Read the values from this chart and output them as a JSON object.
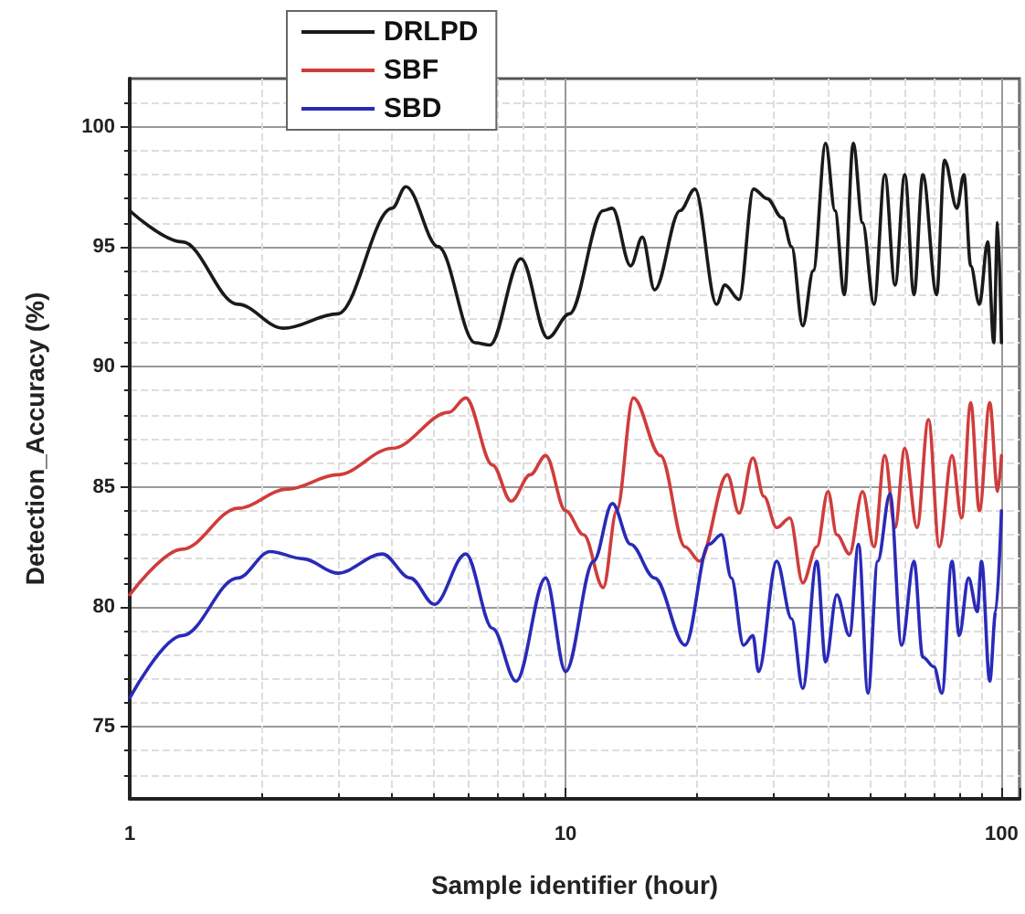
{
  "chart_data": {
    "type": "line",
    "xlabel": "Sample identifier (hour)",
    "ylabel": "Detection_Accuracy (%)",
    "log": "x",
    "xlim": [
      1,
      110
    ],
    "xticks": [
      1,
      10,
      100
    ],
    "ylim": [
      72,
      102
    ],
    "yticks": [
      75,
      80,
      85,
      90,
      95,
      100
    ],
    "grid": true,
    "legend": "top",
    "marker": "none",
    "line_style": "solid",
    "series": [
      {
        "name": "DRLPD",
        "color": "#1a1a1a",
        "x": [
          1,
          1.32,
          1.77,
          2.25,
          3,
          4,
          4.3,
          5.1,
          6.2,
          6.7,
          7.9,
          9.1,
          10.2,
          12.2,
          12.8,
          14.1,
          15,
          16,
          18.3,
          19.8,
          22.2,
          23.2,
          25,
          27,
          29,
          31.4,
          33,
          35,
          37,
          39.5,
          41.5,
          43.6,
          45.7,
          48,
          51,
          54,
          57,
          60,
          63,
          66,
          71,
          74,
          79,
          82,
          85,
          89,
          93,
          96,
          98,
          100
        ],
        "values": [
          96.5,
          95.2,
          92.6,
          91.6,
          92.2,
          96.6,
          97.5,
          95,
          91,
          90.9,
          94.5,
          91.2,
          92.2,
          96.5,
          96.6,
          94.2,
          95.4,
          93.2,
          96.5,
          97.4,
          92.6,
          93.4,
          92.8,
          97.4,
          97,
          96.2,
          95,
          91.7,
          94,
          99.3,
          96.5,
          93,
          99.3,
          96,
          92.6,
          98,
          93.4,
          98,
          93,
          98,
          93,
          98.6,
          96.6,
          98,
          94.2,
          92.6,
          95.2,
          91,
          96,
          91
        ]
      },
      {
        "name": "SBF",
        "color": "#d03c3c",
        "x": [
          1,
          1.32,
          1.77,
          2.3,
          3,
          4,
          5.4,
          5.9,
          6.8,
          7.5,
          8.3,
          9,
          10,
          11,
          12.2,
          13.1,
          14.3,
          16.5,
          18.8,
          20.3,
          23.5,
          25,
          26.9,
          28.5,
          30.5,
          32.7,
          35,
          37.7,
          40,
          41.9,
          44.8,
          48,
          51,
          54,
          57,
          60,
          64,
          68,
          72,
          77,
          81,
          85,
          89,
          94,
          98,
          100
        ],
        "values": [
          80.5,
          82.4,
          84.1,
          84.9,
          85.5,
          86.6,
          88.1,
          88.7,
          85.9,
          84.4,
          85.5,
          86.3,
          84,
          83,
          80.8,
          84,
          88.7,
          86.3,
          82.5,
          81.9,
          85.5,
          83.9,
          86.2,
          84.6,
          83.3,
          83.7,
          81,
          82.5,
          84.8,
          83,
          82.2,
          84.8,
          82.5,
          86.3,
          83.3,
          86.6,
          83.3,
          87.8,
          82.5,
          86.3,
          83.7,
          88.5,
          84,
          88.5,
          84.8,
          86.3
        ]
      },
      {
        "name": "SBD",
        "color": "#2a2ab8",
        "x": [
          1,
          1.32,
          1.77,
          2.1,
          2.5,
          3,
          3.8,
          4.4,
          5,
          5.9,
          6.8,
          7.7,
          9,
          10,
          11.6,
          12.8,
          14.1,
          16,
          18.8,
          21.3,
          22.8,
          24,
          25.6,
          26.9,
          27.7,
          30.5,
          33,
          35,
          37.7,
          39.5,
          41.9,
          44.8,
          47,
          49.4,
          52,
          55.5,
          59,
          63,
          66,
          70,
          73,
          77,
          80,
          84,
          88,
          90,
          94,
          97,
          100
        ],
        "values": [
          76.2,
          78.8,
          81.2,
          82.3,
          82,
          81.4,
          82.2,
          81.2,
          80.1,
          82.2,
          79.1,
          76.9,
          81.2,
          77.3,
          81.9,
          84.3,
          82.6,
          81.2,
          78.4,
          82.6,
          83,
          81.2,
          78.4,
          78.8,
          77.3,
          81.9,
          79.5,
          76.6,
          81.9,
          77.7,
          80.5,
          78.8,
          82.6,
          76.4,
          81.9,
          84.7,
          78.4,
          81.9,
          77.9,
          77.5,
          76.4,
          81.9,
          78.8,
          81.2,
          79.8,
          81.9,
          76.9,
          79.8,
          84
        ]
      }
    ]
  }
}
